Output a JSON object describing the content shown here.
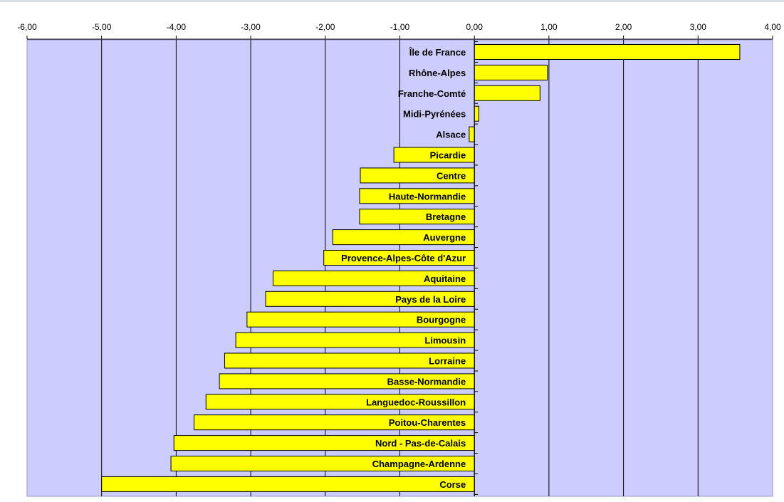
{
  "chart_data": {
    "type": "bar",
    "orientation": "horizontal",
    "xlim": [
      -6,
      4
    ],
    "x_ticks": [
      "-6,00",
      "-5,00",
      "-4,00",
      "-3,00",
      "-2,00",
      "-1,00",
      "0,00",
      "1,00",
      "2,00",
      "3,00",
      "4,00"
    ],
    "x_tick_values": [
      -6,
      -5,
      -4,
      -3,
      -2,
      -1,
      0,
      1,
      2,
      3,
      4
    ],
    "axis_position": "top",
    "grid": "vertical",
    "categories": [
      "Île de France",
      "Rhône-Alpes",
      "Franche-Comté",
      "Midi-Pyrénées",
      "Alsace",
      "Picardie",
      "Centre",
      "Haute-Normandie",
      "Bretagne",
      "Auvergne",
      "Provence-Alpes-Côte d'Azur",
      "Aquitaine",
      "Pays de la Loire",
      "Bourgogne",
      "Limousin",
      "Lorraine",
      "Basse-Normandie",
      "Languedoc-Roussillon",
      "Poitou-Charentes",
      "Nord - Pas-de-Calais",
      "Champagne-Ardenne",
      "Corse"
    ],
    "values": [
      3.56,
      0.98,
      0.88,
      0.06,
      -0.07,
      -1.08,
      -1.53,
      -1.54,
      -1.54,
      -1.9,
      -2.02,
      -2.7,
      -2.8,
      -3.05,
      -3.2,
      -3.35,
      -3.42,
      -3.6,
      -3.76,
      -4.03,
      -4.07,
      -5.0
    ],
    "colors": {
      "plot_background": "#ccccff",
      "bar_fill": "#ffff00",
      "bar_stroke": "#000000",
      "grid": "#000000",
      "axis": "#000000"
    }
  }
}
